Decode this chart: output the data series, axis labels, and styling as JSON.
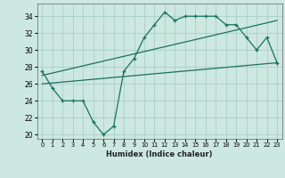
{
  "xlabel": "Humidex (Indice chaleur)",
  "background_color": "#cce8e0",
  "grid_color": "#aacfc8",
  "line_color": "#1a7060",
  "x_hours": [
    0,
    1,
    2,
    3,
    4,
    5,
    6,
    7,
    8,
    9,
    10,
    11,
    12,
    13,
    14,
    15,
    16,
    17,
    18,
    19,
    20,
    21,
    22,
    23
  ],
  "humidex_values": [
    27.5,
    25.5,
    24.0,
    24.0,
    24.0,
    21.5,
    20.0,
    21.0,
    27.5,
    29.0,
    31.5,
    33.0,
    34.5,
    33.5,
    34.0,
    34.0,
    34.0,
    34.0,
    33.0,
    33.0,
    31.5,
    30.0,
    31.5,
    28.5
  ],
  "trend1_x": [
    0,
    23
  ],
  "trend1_y": [
    26.0,
    28.5
  ],
  "trend2_x": [
    0,
    23
  ],
  "trend2_y": [
    27.0,
    33.5
  ],
  "ylim": [
    19.5,
    35.5
  ],
  "xlim": [
    -0.5,
    23.5
  ],
  "yticks": [
    20,
    22,
    24,
    26,
    28,
    30,
    32,
    34
  ],
  "xtick_labels": [
    "0",
    "1",
    "2",
    "3",
    "4",
    "5",
    "6",
    "7",
    "8",
    "9",
    "10",
    "11",
    "12",
    "13",
    "14",
    "15",
    "16",
    "17",
    "18",
    "19",
    "20",
    "21",
    "22",
    "23"
  ]
}
